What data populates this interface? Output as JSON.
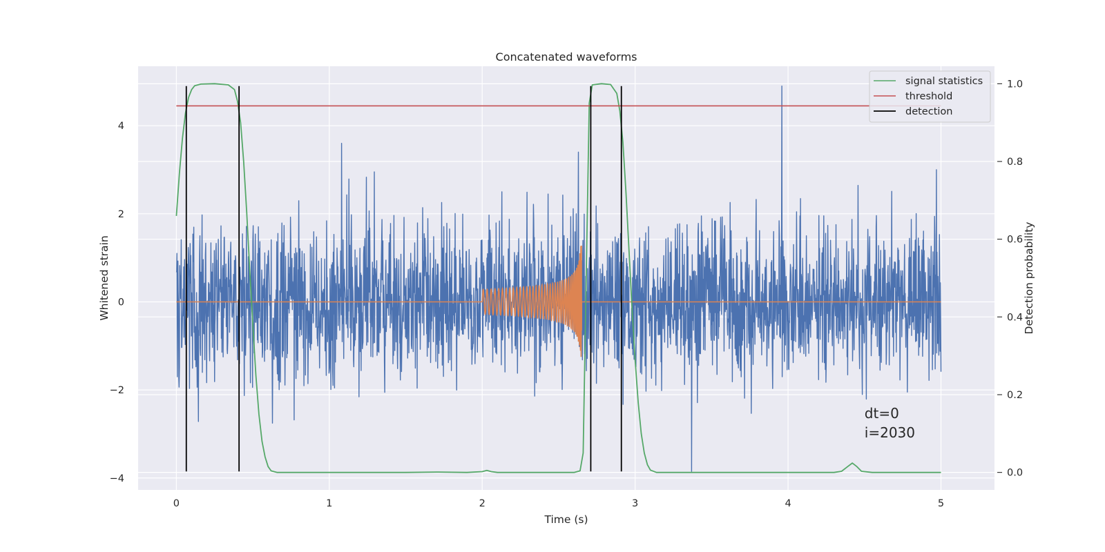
{
  "chart_data": {
    "type": "line",
    "title": "Concatenated waveforms",
    "xlabel": "Time (s)",
    "ylabel": "Whitened strain",
    "ylabel_right": "Detection probability",
    "xlim": [
      -0.25,
      5.35
    ],
    "ylim": [
      -4.27,
      5.35
    ],
    "ylim_right": [
      -0.045,
      1.045
    ],
    "x_ticks": [
      0,
      1,
      2,
      3,
      4,
      5
    ],
    "y_ticks": [
      -4,
      -2,
      0,
      2,
      4
    ],
    "y_ticks_right": [
      0.0,
      0.2,
      0.4,
      0.6,
      0.8,
      1.0
    ],
    "grid": true,
    "legend_position": "top-right",
    "series": [
      {
        "name": "",
        "kind": "whitened_strain_noise",
        "color": "#4c72b0",
        "x_range": [
          0,
          5
        ],
        "sample_count": 2500,
        "typical_abs_max": 1.5,
        "extreme_points": [
          {
            "x": 1.08,
            "y": 3.6
          },
          {
            "x": 2.63,
            "y": 3.4
          },
          {
            "x": 3.37,
            "y": -3.85
          },
          {
            "x": 3.96,
            "y": 4.9
          },
          {
            "x": 4.97,
            "y": 3.0
          }
        ]
      },
      {
        "name": "",
        "kind": "injected_chirp",
        "color": "#dd8452",
        "x_range": [
          0,
          5
        ],
        "chirp_start": 2.0,
        "chirp_end": 2.65,
        "peak_amplitude": 1.4
      },
      {
        "name": "signal statistics",
        "axis": "right",
        "color": "#55a868",
        "points": [
          [
            0.0,
            0.66
          ],
          [
            0.02,
            0.77
          ],
          [
            0.04,
            0.86
          ],
          [
            0.06,
            0.925
          ],
          [
            0.08,
            0.965
          ],
          [
            0.1,
            0.985
          ],
          [
            0.12,
            0.995
          ],
          [
            0.16,
            0.999
          ],
          [
            0.25,
            1.0
          ],
          [
            0.34,
            0.997
          ],
          [
            0.38,
            0.985
          ],
          [
            0.4,
            0.955
          ],
          [
            0.42,
            0.9
          ],
          [
            0.44,
            0.8
          ],
          [
            0.46,
            0.67
          ],
          [
            0.48,
            0.52
          ],
          [
            0.5,
            0.38
          ],
          [
            0.52,
            0.25
          ],
          [
            0.54,
            0.15
          ],
          [
            0.56,
            0.08
          ],
          [
            0.58,
            0.04
          ],
          [
            0.6,
            0.015
          ],
          [
            0.62,
            0.004
          ],
          [
            0.66,
            0.0
          ],
          [
            1.0,
            0.0
          ],
          [
            1.5,
            0.0
          ],
          [
            1.7,
            0.001
          ],
          [
            1.9,
            0.0
          ],
          [
            2.0,
            0.002
          ],
          [
            2.03,
            0.005
          ],
          [
            2.06,
            0.002
          ],
          [
            2.1,
            0.0
          ],
          [
            2.4,
            0.0
          ],
          [
            2.6,
            0.0
          ],
          [
            2.64,
            0.004
          ],
          [
            2.66,
            0.05
          ],
          [
            2.68,
            0.5
          ],
          [
            2.7,
            0.95
          ],
          [
            2.72,
            0.997
          ],
          [
            2.78,
            1.0
          ],
          [
            2.84,
            0.998
          ],
          [
            2.88,
            0.975
          ],
          [
            2.9,
            0.93
          ],
          [
            2.92,
            0.85
          ],
          [
            2.94,
            0.72
          ],
          [
            2.96,
            0.57
          ],
          [
            2.98,
            0.42
          ],
          [
            3.0,
            0.29
          ],
          [
            3.02,
            0.18
          ],
          [
            3.04,
            0.1
          ],
          [
            3.06,
            0.05
          ],
          [
            3.08,
            0.02
          ],
          [
            3.1,
            0.006
          ],
          [
            3.14,
            0.0
          ],
          [
            3.6,
            0.0
          ],
          [
            4.3,
            0.0
          ],
          [
            4.35,
            0.003
          ],
          [
            4.39,
            0.015
          ],
          [
            4.42,
            0.024
          ],
          [
            4.45,
            0.015
          ],
          [
            4.48,
            0.003
          ],
          [
            4.55,
            0.0
          ],
          [
            5.0,
            0.0
          ]
        ]
      },
      {
        "name": "threshold",
        "color": "#c44e52",
        "x_range": [
          0,
          5
        ],
        "y": 4.45
      },
      {
        "name": "detection",
        "color": "#000000",
        "x": [
          0.065,
          0.41,
          2.71,
          2.91
        ],
        "y_range": [
          -3.85,
          4.9
        ]
      }
    ],
    "annotation": {
      "lines": [
        "dt=0",
        "i=2030"
      ],
      "x": 4.5,
      "y_right": 0.09
    }
  }
}
